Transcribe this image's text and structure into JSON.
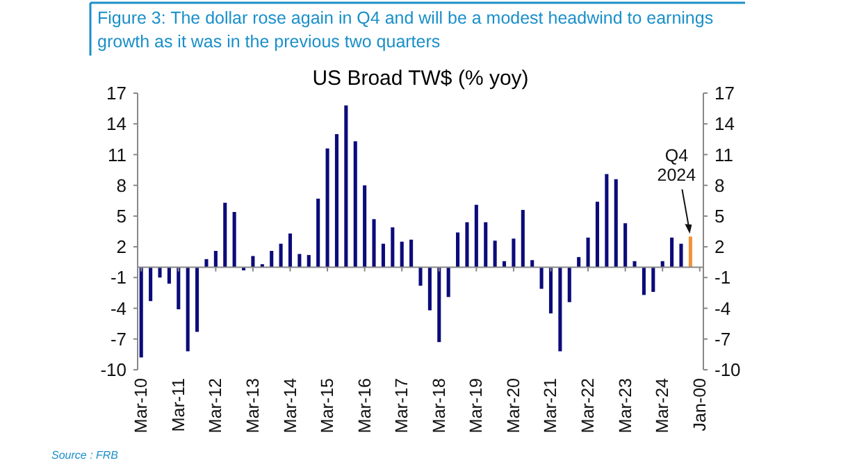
{
  "chart_data": {
    "type": "bar",
    "title": "Figure 3: The dollar rose again in Q4 and will be a modest headwind to earnings growth as it was in the previous two quarters",
    "subtitle": "US Broad TW$ (% yoy)",
    "categories": [
      "Mar-10",
      null,
      null,
      null,
      "Mar-11",
      null,
      null,
      null,
      "Mar-12",
      null,
      null,
      null,
      "Mar-13",
      null,
      null,
      null,
      "Mar-14",
      null,
      null,
      null,
      "Mar-15",
      null,
      null,
      null,
      "Mar-16",
      null,
      null,
      null,
      "Mar-17",
      null,
      null,
      null,
      "Mar-18",
      null,
      null,
      null,
      "Mar-19",
      null,
      null,
      null,
      "Mar-20",
      null,
      null,
      null,
      "Mar-21",
      null,
      null,
      null,
      "Mar-22",
      null,
      null,
      null,
      "Mar-23",
      null,
      null,
      null,
      "Mar-24",
      null,
      null,
      null,
      "Jan-00"
    ],
    "values": [
      -8.8,
      -3.3,
      -1.0,
      -1.6,
      -4.1,
      -8.2,
      -6.3,
      0.8,
      1.6,
      6.3,
      5.4,
      -0.3,
      1.1,
      0.3,
      1.6,
      2.3,
      3.3,
      1.3,
      1.2,
      6.7,
      11.6,
      13.0,
      15.8,
      12.3,
      8.0,
      4.7,
      2.3,
      3.9,
      2.5,
      2.7,
      -1.8,
      -4.2,
      -7.3,
      -2.9,
      3.4,
      4.4,
      6.1,
      4.4,
      2.6,
      0.6,
      2.8,
      5.6,
      0.7,
      -2.1,
      -4.5,
      -8.2,
      -3.4,
      1.0,
      2.9,
      6.4,
      9.1,
      8.6,
      4.3,
      0.6,
      -2.7,
      -2.4,
      0.6,
      2.9,
      2.3,
      3.0,
      null
    ],
    "colors": [
      "#0b0b7a",
      "#0b0b7a",
      "#0b0b7a",
      "#0b0b7a",
      "#0b0b7a",
      "#0b0b7a",
      "#0b0b7a",
      "#0b0b7a",
      "#0b0b7a",
      "#0b0b7a",
      "#0b0b7a",
      "#0b0b7a",
      "#0b0b7a",
      "#0b0b7a",
      "#0b0b7a",
      "#0b0b7a",
      "#0b0b7a",
      "#0b0b7a",
      "#0b0b7a",
      "#0b0b7a",
      "#0b0b7a",
      "#0b0b7a",
      "#0b0b7a",
      "#0b0b7a",
      "#0b0b7a",
      "#0b0b7a",
      "#0b0b7a",
      "#0b0b7a",
      "#0b0b7a",
      "#0b0b7a",
      "#0b0b7a",
      "#0b0b7a",
      "#0b0b7a",
      "#0b0b7a",
      "#0b0b7a",
      "#0b0b7a",
      "#0b0b7a",
      "#0b0b7a",
      "#0b0b7a",
      "#0b0b7a",
      "#0b0b7a",
      "#0b0b7a",
      "#0b0b7a",
      "#0b0b7a",
      "#0b0b7a",
      "#0b0b7a",
      "#0b0b7a",
      "#0b0b7a",
      "#0b0b7a",
      "#0b0b7a",
      "#0b0b7a",
      "#0b0b7a",
      "#0b0b7a",
      "#0b0b7a",
      "#0b0b7a",
      "#0b0b7a",
      "#0b0b7a",
      "#0b0b7a",
      "#0b0b7a",
      "#f0923a",
      null
    ],
    "ylim": [
      -10,
      17
    ],
    "yticks": [
      17,
      14,
      11,
      8,
      5,
      2,
      -1,
      -4,
      -7,
      -10
    ],
    "y2lim": [
      -10,
      17
    ],
    "y2ticks": [
      17,
      14,
      11,
      8,
      5,
      2,
      -1,
      -4,
      -7,
      -10
    ],
    "grid": false,
    "annotations": [
      {
        "text": "Q4\n2024",
        "y": 3.0
      },
      "Source : FRB"
    ]
  }
}
